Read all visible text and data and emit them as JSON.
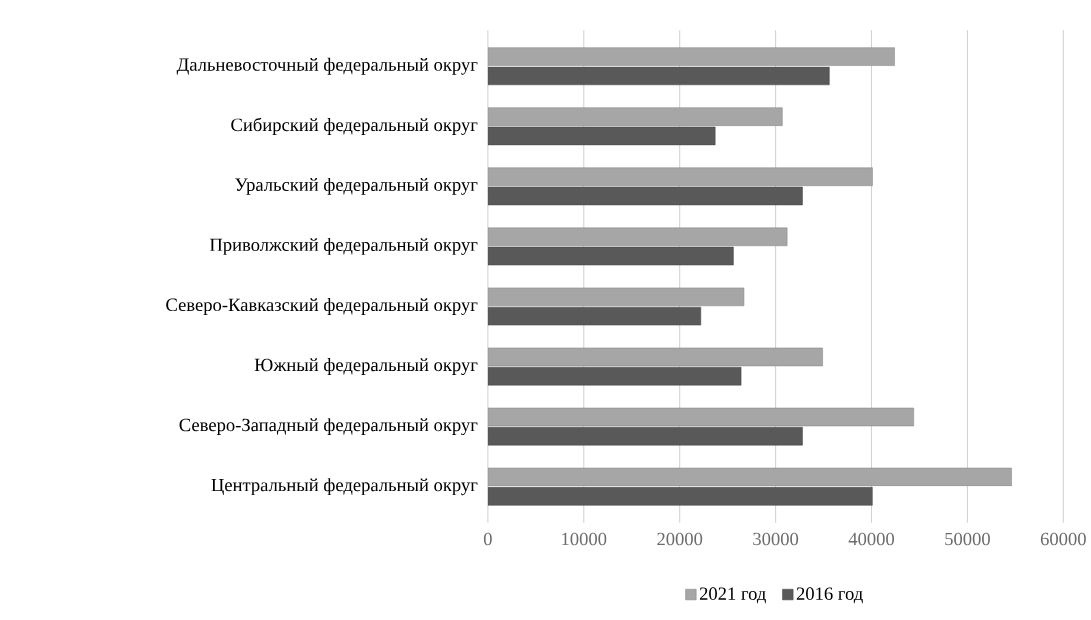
{
  "chart_data": {
    "type": "bar",
    "orientation": "horizontal",
    "categories": [
      "Дальневосточный федеральный округ",
      "Сибирский федеральный округ",
      "Уральский федеральный округ",
      "Приволжский федеральный округ",
      "Северо-Кавказский федеральный округ",
      "Южный федеральный округ",
      "Северо-Западный федеральный округ",
      "Центральный федеральный округ"
    ],
    "series": [
      {
        "name": "2021 год",
        "color": "#a6a6a6",
        "values": [
          42400,
          30700,
          40100,
          31200,
          26700,
          34900,
          44400,
          54600
        ]
      },
      {
        "name": "2016 год",
        "color": "#595959",
        "values": [
          35600,
          23700,
          32800,
          25600,
          22200,
          26400,
          32800,
          40100
        ]
      }
    ],
    "xlim": [
      0,
      60000
    ],
    "xticks": [
      0,
      10000,
      20000,
      30000,
      40000,
      50000,
      60000
    ],
    "grid": "x",
    "legend": "bottom"
  }
}
